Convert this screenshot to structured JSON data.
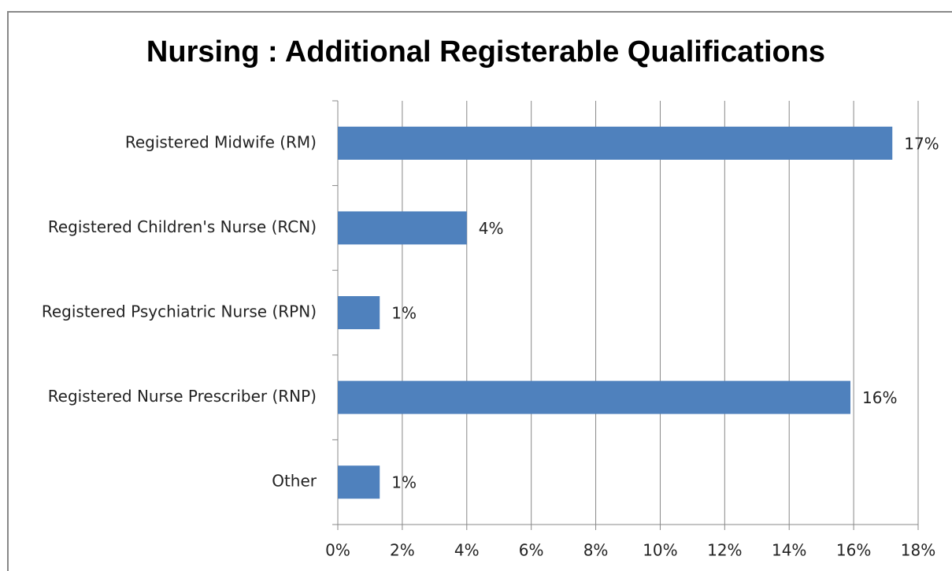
{
  "chart_data": {
    "type": "bar",
    "orientation": "horizontal",
    "title": "Nursing : Additional Registerable Qualifications",
    "categories": [
      "Registered Midwife (RM)",
      "Registered Children's Nurse (RCN)",
      "Registered Psychiatric Nurse (RPN)",
      "Registered Nurse Prescriber (RNP)",
      "Other"
    ],
    "values": [
      17.2,
      4.0,
      1.3,
      15.9,
      1.3
    ],
    "value_labels": [
      "17%",
      "4%",
      "1%",
      "16%",
      "1%"
    ],
    "color": "#4f81bd",
    "xlim": [
      0,
      18
    ],
    "xticks": [
      {
        "value": 0,
        "label": "0%"
      },
      {
        "value": 2,
        "label": "2%"
      },
      {
        "value": 4,
        "label": "4%"
      },
      {
        "value": 6,
        "label": "6%"
      },
      {
        "value": 8,
        "label": "8%"
      },
      {
        "value": 10,
        "label": "10%"
      },
      {
        "value": 12,
        "label": "12%"
      },
      {
        "value": 14,
        "label": "14%"
      },
      {
        "value": 16,
        "label": "16%"
      },
      {
        "value": 18,
        "label": "18%"
      }
    ],
    "grid": true
  }
}
